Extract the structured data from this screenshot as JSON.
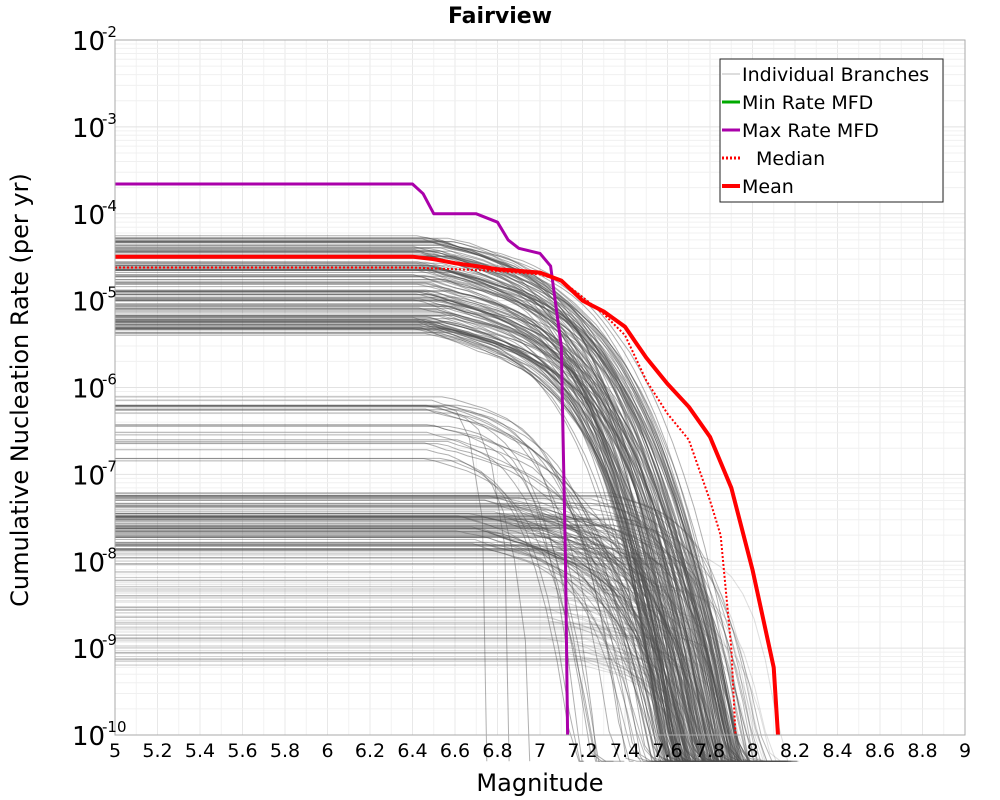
{
  "chart_data": {
    "type": "line",
    "title": "Fairview",
    "xlabel": "Magnitude",
    "ylabel": "Cumulative Nucleation Rate (per yr)",
    "xlim": [
      5,
      9
    ],
    "ylim": [
      1e-10,
      0.01
    ],
    "yscale": "log",
    "grid": true,
    "legend_position": "top-right",
    "x_ticks": [
      5,
      5.2,
      5.4,
      5.6,
      5.8,
      6,
      6.2,
      6.4,
      6.6,
      6.8,
      7,
      7.2,
      7.4,
      7.6,
      7.8,
      8,
      8.2,
      8.4,
      8.6,
      8.8,
      9
    ],
    "x_tick_labels": [
      "5",
      "5.2",
      "5.4",
      "5.6",
      "5.8",
      "6",
      "6.2",
      "6.4",
      "6.6",
      "6.8",
      "7",
      "7.2",
      "7.4",
      "7.6",
      "7.8",
      "8",
      "8.2",
      "8.4",
      "8.6",
      "8.8",
      "9"
    ],
    "y_ticks": [
      {
        "value": 1e-10,
        "base": "10",
        "exp": "-10"
      },
      {
        "value": 1e-09,
        "base": "10",
        "exp": "-9"
      },
      {
        "value": 1e-08,
        "base": "10",
        "exp": "-8"
      },
      {
        "value": 1e-07,
        "base": "10",
        "exp": "-7"
      },
      {
        "value": 1e-06,
        "base": "10",
        "exp": "-6"
      },
      {
        "value": 1e-05,
        "base": "10",
        "exp": "-5"
      },
      {
        "value": 0.0001,
        "base": "10",
        "exp": "-4"
      },
      {
        "value": 0.001,
        "base": "10",
        "exp": "-3"
      },
      {
        "value": 0.01,
        "base": "10",
        "exp": "-2"
      }
    ],
    "colors": {
      "branches": "#505050",
      "min_rate": "#00aa00",
      "max_rate": "#aa00aa",
      "median": "#ff0000",
      "mean": "#ff0000",
      "grid": "#e8e8e8",
      "axes": "#aaaaaa"
    },
    "legend": [
      {
        "name": "Individual Branches",
        "color": "#bbbbbb",
        "style": "thin"
      },
      {
        "name": "Min Rate MFD",
        "color": "#00aa00",
        "style": "solid"
      },
      {
        "name": "Max Rate MFD",
        "color": "#aa00aa",
        "style": "solid"
      },
      {
        "name": "Median",
        "color": "#ff0000",
        "style": "dotted"
      },
      {
        "name": "Mean",
        "color": "#ff0000",
        "style": "solid-thick"
      }
    ],
    "series": [
      {
        "name": "Max Rate MFD",
        "x": [
          5,
          6.4,
          6.45,
          6.5,
          6.65,
          6.7,
          6.8,
          6.85,
          6.9,
          7.0,
          7.05,
          7.1,
          7.12,
          7.13
        ],
        "y": [
          0.00022,
          0.00022,
          0.00017,
          0.0001,
          0.0001,
          0.0001,
          8e-05,
          5e-05,
          4e-05,
          3.5e-05,
          2.5e-05,
          3e-06,
          1e-08,
          1e-10
        ]
      },
      {
        "name": "Median",
        "x": [
          5,
          6.4,
          6.6,
          6.8,
          7.0,
          7.1,
          7.2,
          7.3,
          7.4,
          7.5,
          7.6,
          7.7,
          7.8,
          7.85,
          7.9,
          7.92
        ],
        "y": [
          2.4e-05,
          2.4e-05,
          2.3e-05,
          2.2e-05,
          2e-05,
          1.7e-05,
          1.1e-05,
          7e-06,
          4e-06,
          1.2e-06,
          5e-07,
          2.5e-07,
          5e-08,
          2e-08,
          1e-09,
          1e-10
        ]
      },
      {
        "name": "Mean",
        "x": [
          5,
          6.4,
          6.5,
          6.6,
          6.7,
          6.8,
          6.9,
          7.0,
          7.1,
          7.2,
          7.3,
          7.4,
          7.5,
          7.6,
          7.7,
          7.8,
          7.9,
          8.0,
          8.1,
          8.12
        ],
        "y": [
          3.2e-05,
          3.2e-05,
          3e-05,
          2.7e-05,
          2.5e-05,
          2.3e-05,
          2.2e-05,
          2.1e-05,
          1.7e-05,
          1e-05,
          7.5e-06,
          5e-06,
          2.2e-06,
          1.1e-06,
          6e-07,
          2.7e-07,
          7e-08,
          8e-09,
          6e-10,
          1e-10
        ]
      }
    ]
  }
}
